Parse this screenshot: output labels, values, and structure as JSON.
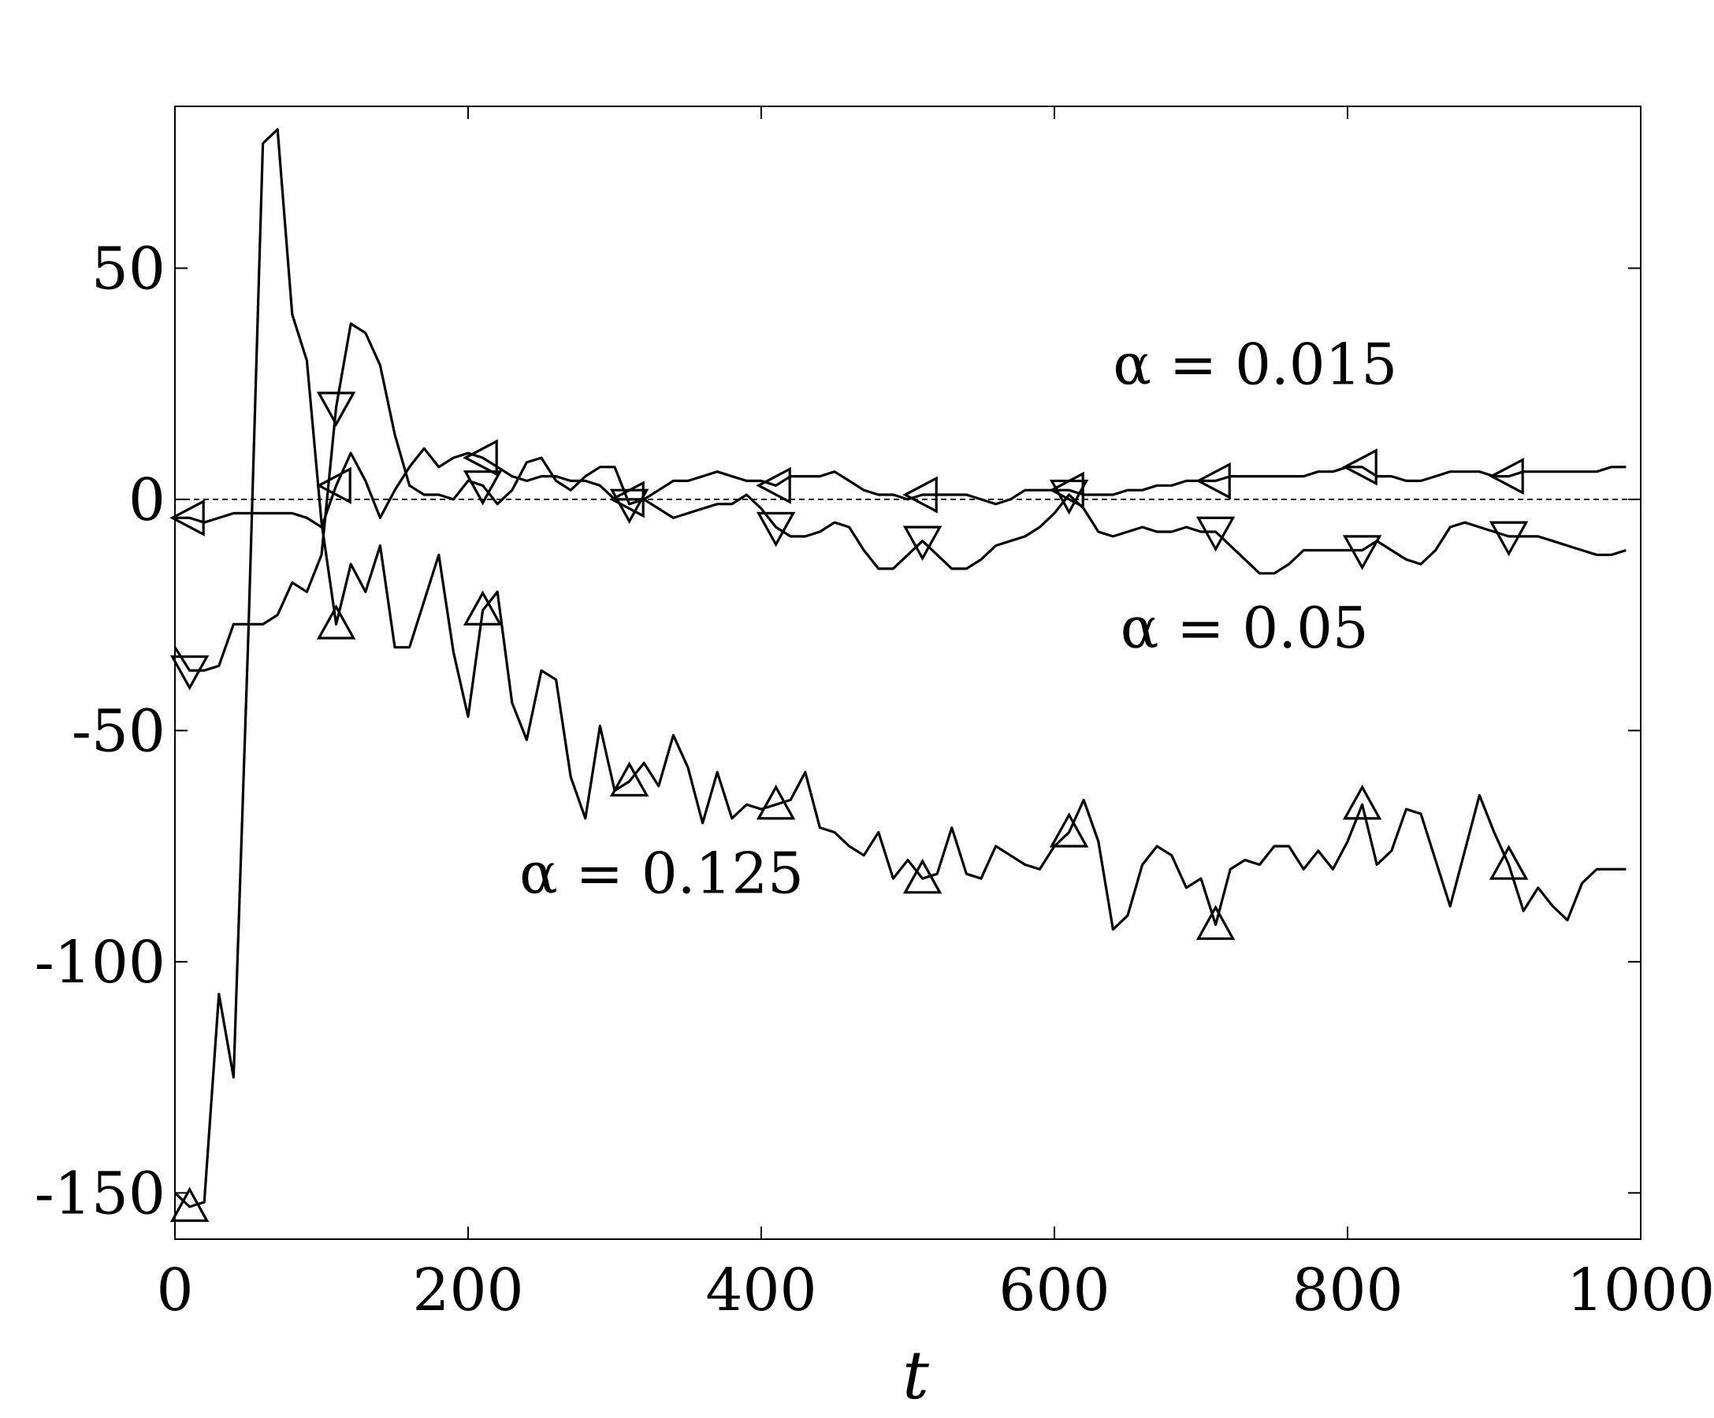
{
  "chart_data": {
    "type": "line",
    "xlabel": "t",
    "ylabel": "",
    "xlim": [
      0,
      1000
    ],
    "ylim": [
      -160,
      85
    ],
    "xticks": [
      0,
      200,
      400,
      600,
      800,
      1000
    ],
    "yticks": [
      50,
      0,
      -50,
      -100,
      -150
    ],
    "xtick_labels": [
      "0",
      "200",
      "400",
      "600",
      "800",
      "1000"
    ],
    "ytick_labels": [
      "50",
      "0",
      "-50",
      "-100",
      "-150"
    ],
    "reference_line": {
      "y": 0,
      "style": "dashed"
    },
    "grid": false,
    "annotations": [
      {
        "text": "α = 0.015",
        "x": 640,
        "y": 29
      },
      {
        "text": "α = 0.05",
        "x": 645,
        "y": -28
      },
      {
        "text": "α = 0.125",
        "x": 235,
        "y": -81
      }
    ],
    "series": [
      {
        "marker": "triangle-left",
        "marker_x": [
          10,
          110,
          210,
          310,
          410,
          510,
          610,
          710,
          810,
          910
        ],
        "x": [
          0,
          10,
          20,
          30,
          40,
          50,
          60,
          70,
          80,
          90,
          100,
          110,
          120,
          130,
          140,
          150,
          160,
          170,
          180,
          190,
          200,
          210,
          220,
          230,
          240,
          250,
          260,
          270,
          280,
          290,
          300,
          310,
          320,
          330,
          340,
          350,
          360,
          370,
          380,
          390,
          400,
          410,
          420,
          430,
          440,
          450,
          460,
          470,
          480,
          490,
          500,
          510,
          520,
          530,
          540,
          550,
          560,
          570,
          580,
          590,
          600,
          610,
          620,
          630,
          640,
          650,
          660,
          670,
          680,
          690,
          700,
          710,
          720,
          730,
          740,
          750,
          760,
          770,
          780,
          790,
          800,
          810,
          820,
          830,
          840,
          850,
          860,
          870,
          880,
          890,
          900,
          910,
          920,
          930,
          940,
          950,
          960,
          970,
          980,
          990
        ],
        "values": [
          -4,
          -4,
          -5,
          -4,
          -3,
          -3,
          -3,
          -3,
          -3,
          -4,
          -6,
          3,
          10,
          4,
          -4,
          2,
          7,
          11,
          7,
          9,
          10,
          9,
          7,
          5,
          4,
          5,
          5,
          4,
          4,
          3,
          0,
          0,
          0,
          2,
          4,
          4,
          5,
          6,
          5,
          4,
          4,
          3,
          5,
          5,
          5,
          6,
          4,
          2,
          1,
          1,
          0,
          1,
          1,
          1,
          1,
          0,
          -1,
          0,
          2,
          2,
          2,
          2,
          1,
          1,
          1,
          2,
          2,
          3,
          3,
          4,
          4,
          4,
          5,
          5,
          5,
          5,
          5,
          5,
          6,
          6,
          7,
          7,
          5,
          5,
          4,
          4,
          5,
          6,
          6,
          6,
          5,
          5,
          6,
          6,
          6,
          6,
          6,
          6,
          7,
          7
        ]
      },
      {
        "marker": "triangle-down",
        "marker_x": [
          10,
          110,
          210,
          310,
          410,
          510,
          610,
          710,
          810,
          910
        ],
        "x": [
          0,
          10,
          20,
          30,
          40,
          50,
          60,
          70,
          80,
          90,
          100,
          110,
          120,
          130,
          140,
          150,
          160,
          170,
          180,
          190,
          200,
          210,
          220,
          230,
          240,
          250,
          260,
          270,
          280,
          290,
          300,
          310,
          320,
          330,
          340,
          350,
          360,
          370,
          380,
          390,
          400,
          410,
          420,
          430,
          440,
          450,
          460,
          470,
          480,
          490,
          500,
          510,
          520,
          530,
          540,
          550,
          560,
          570,
          580,
          590,
          600,
          610,
          620,
          630,
          640,
          650,
          660,
          670,
          680,
          690,
          700,
          710,
          720,
          730,
          740,
          750,
          760,
          770,
          780,
          790,
          800,
          810,
          820,
          830,
          840,
          850,
          860,
          870,
          880,
          890,
          900,
          910,
          920,
          930,
          940,
          950,
          960,
          970,
          980,
          990
        ],
        "values": [
          -32,
          -37,
          -37,
          -36,
          -27,
          -27,
          -27,
          -25,
          -18,
          -20,
          -12,
          20,
          38,
          36,
          29,
          14,
          3,
          1,
          1,
          0,
          4,
          3,
          -1,
          2,
          8,
          9,
          4,
          2,
          5,
          7,
          7,
          -1,
          0,
          -2,
          -4,
          -3,
          -2,
          -1,
          -1,
          1,
          -2,
          -6,
          -8,
          -8,
          -7,
          -5,
          -6,
          -11,
          -15,
          -15,
          -12,
          -9,
          -12,
          -15,
          -15,
          -13,
          -10,
          -9,
          -8,
          -6,
          -3,
          1,
          -2,
          -7,
          -8,
          -7,
          -6,
          -7,
          -7,
          -6,
          -7,
          -7,
          -10,
          -13,
          -16,
          -16,
          -14,
          -11,
          -11,
          -11,
          -11,
          -11,
          -9,
          -11,
          -13,
          -14,
          -11,
          -6,
          -5,
          -6,
          -7,
          -8,
          -8,
          -8,
          -9,
          -10,
          -11,
          -12,
          -12,
          -11
        ]
      },
      {
        "marker": "triangle-up",
        "marker_x": [
          10,
          110,
          210,
          310,
          410,
          510,
          610,
          710,
          810,
          910
        ],
        "x": [
          0,
          10,
          20,
          30,
          40,
          50,
          60,
          70,
          80,
          90,
          100,
          110,
          120,
          130,
          140,
          150,
          160,
          170,
          180,
          190,
          200,
          210,
          220,
          230,
          240,
          250,
          260,
          270,
          280,
          290,
          300,
          310,
          320,
          330,
          340,
          350,
          360,
          370,
          380,
          390,
          400,
          410,
          420,
          430,
          440,
          450,
          460,
          470,
          480,
          490,
          500,
          510,
          520,
          530,
          540,
          550,
          560,
          570,
          580,
          590,
          600,
          610,
          620,
          630,
          640,
          650,
          660,
          670,
          680,
          690,
          700,
          710,
          720,
          730,
          740,
          750,
          760,
          770,
          780,
          790,
          800,
          810,
          820,
          830,
          840,
          850,
          860,
          870,
          880,
          890,
          900,
          910,
          920,
          930,
          940,
          950,
          960,
          970,
          980,
          990
        ],
        "values": [
          -150,
          -153,
          -152,
          -107,
          -125,
          -30,
          77,
          80,
          40,
          30,
          -5,
          -27,
          -14,
          -20,
          -10,
          -32,
          -32,
          -22,
          -12,
          -33,
          -47,
          -24,
          -20,
          -44,
          -52,
          -37,
          -39,
          -60,
          -69,
          -49,
          -63,
          -61,
          -57,
          -62,
          -51,
          -58,
          -70,
          -59,
          -69,
          -66,
          -67,
          -66,
          -65,
          -59,
          -71,
          -72,
          -75,
          -77,
          -72,
          -82,
          -78,
          -82,
          -81,
          -71,
          -81,
          -82,
          -75,
          -77,
          -79,
          -80,
          -75,
          -72,
          -65,
          -74,
          -93,
          -90,
          -79,
          -75,
          -77,
          -84,
          -82,
          -92,
          -80,
          -78,
          -79,
          -75,
          -75,
          -80,
          -76,
          -80,
          -74,
          -66,
          -79,
          -76,
          -67,
          -68,
          -78,
          -88,
          -76,
          -64,
          -72,
          -79,
          -89,
          -84,
          -88,
          -91,
          -83,
          -80,
          -80,
          -80
        ]
      }
    ]
  }
}
